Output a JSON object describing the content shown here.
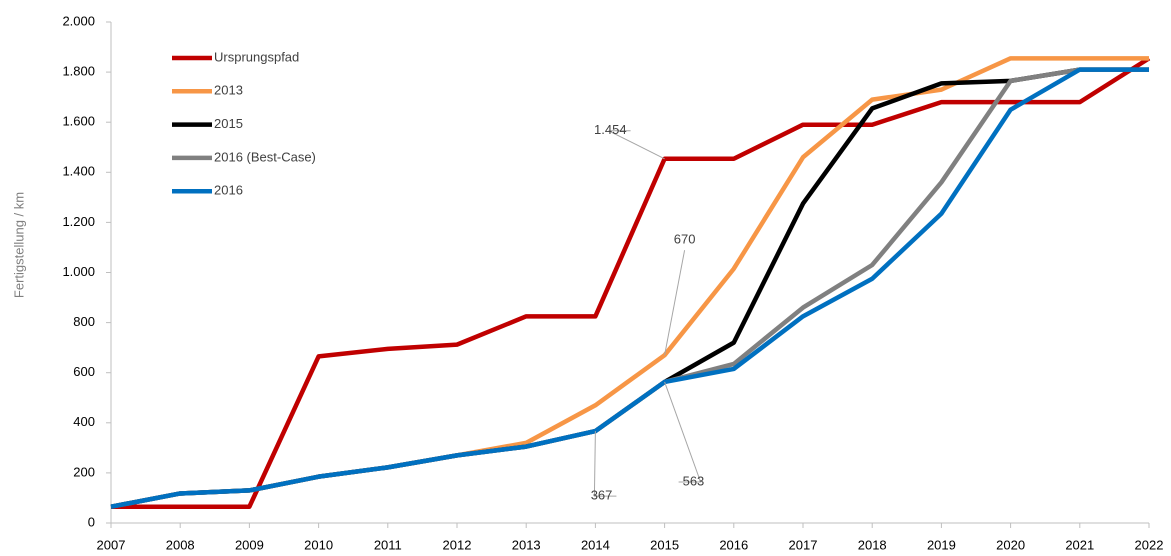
{
  "chart_data": {
    "type": "line",
    "ylabel": "Fertigstellung / km",
    "categories": [
      "2007",
      "2008",
      "2009",
      "2010",
      "2011",
      "2012",
      "2013",
      "2014",
      "2015",
      "2016",
      "2017",
      "2018",
      "2019",
      "2020",
      "2021",
      "2022"
    ],
    "ylim": [
      0,
      2000
    ],
    "yticks": [
      0,
      200,
      400,
      600,
      800,
      {
        "value": 1000,
        "label": "1.000"
      },
      {
        "value": 1200,
        "label": "1.200"
      },
      {
        "value": 1400,
        "label": "1.400"
      },
      {
        "value": 1600,
        "label": "1.600"
      },
      {
        "value": 1800,
        "label": "1.800"
      },
      {
        "value": 2000,
        "label": "2.000"
      }
    ],
    "legend": "upper left",
    "series": [
      {
        "name": "Ursprungspfad",
        "color": "#c00000",
        "values": [
          65,
          65,
          65,
          665,
          695,
          712,
          825,
          825,
          1454,
          1454,
          1590,
          1590,
          1680,
          1680,
          1680,
          1855
        ],
        "value_labels": [
          null,
          null,
          null,
          null,
          null,
          null,
          null,
          null,
          "1.454",
          null,
          null,
          null,
          null,
          null,
          null,
          null
        ]
      },
      {
        "name": "2013",
        "color": "#f79646",
        "values": [
          65,
          118,
          130,
          185,
          222,
          270,
          320,
          470,
          670,
          1015,
          1460,
          1690,
          1730,
          1855,
          1855,
          1855
        ],
        "value_labels": [
          null,
          null,
          null,
          null,
          null,
          null,
          null,
          null,
          "670",
          null,
          null,
          null,
          null,
          null,
          null,
          null
        ]
      },
      {
        "name": "2015",
        "color": "#000000",
        "values": [
          65,
          118,
          130,
          185,
          222,
          270,
          305,
          367,
          563,
          720,
          1275,
          1655,
          1755,
          1765,
          1810,
          1810
        ]
      },
      {
        "name": "2016 (Best-Case)",
        "color": "#808080",
        "values": [
          65,
          118,
          130,
          185,
          222,
          270,
          305,
          367,
          563,
          635,
          860,
          1030,
          1360,
          1765,
          1810,
          1810
        ]
      },
      {
        "name": "2016",
        "color": "#0070c0",
        "values": [
          65,
          118,
          130,
          185,
          222,
          270,
          305,
          367,
          563,
          615,
          825,
          975,
          1235,
          1650,
          1810,
          1810
        ],
        "value_labels": [
          null,
          null,
          null,
          null,
          null,
          null,
          null,
          "367",
          "563",
          null,
          null,
          null,
          null,
          null,
          null,
          null
        ]
      }
    ]
  }
}
